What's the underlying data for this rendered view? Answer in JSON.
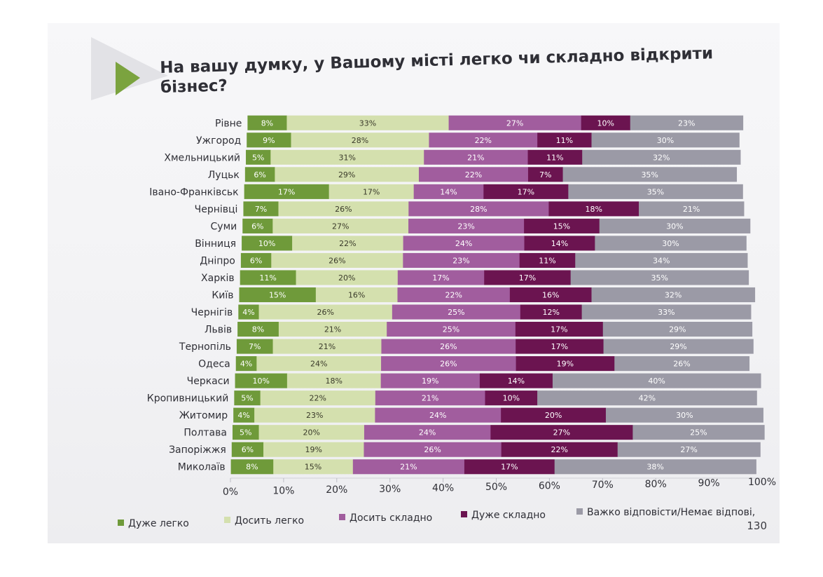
{
  "title": "На вашу думку, у Вашому місті легко чи складно відкрити бізнес?",
  "page_number": "130",
  "colors": {
    "very_easy": "#6f9a3a",
    "rather_easy": "#d4e0ae",
    "rather_difficult": "#a15d9e",
    "very_difficult": "#6b1450",
    "hard_to_say": "#9b9aa6",
    "arrow": "#7ba33f",
    "text": "#2f2f36"
  },
  "chart_data": {
    "type": "bar",
    "orientation": "horizontal",
    "stacked": true,
    "title": "На вашу думку, у Вашому місті легко чи складно відкрити бізнес?",
    "categories": [
      "Рівне",
      "Ужгород",
      "Хмельницький",
      "Луцьк",
      "Івано-Франківськ",
      "Чернівці",
      "Суми",
      "Вінниця",
      "Дніпро",
      "Харків",
      "Київ",
      "Чернігів",
      "Львів",
      "Тернопіль",
      "Одеса",
      "Черкаси",
      "Кропивницький",
      "Житомир",
      "Полтава",
      "Запоріжжя",
      "Миколаїв"
    ],
    "series": [
      {
        "name": "Дуже легко",
        "color": "#6f9a3a",
        "values": [
          8,
          9,
          5,
          6,
          17,
          7,
          6,
          10,
          6,
          11,
          15,
          4,
          8,
          7,
          4,
          10,
          5,
          4,
          5,
          6,
          8
        ]
      },
      {
        "name": "Досить легко",
        "color": "#d4e0ae",
        "values": [
          33,
          28,
          31,
          29,
          17,
          26,
          27,
          22,
          26,
          20,
          16,
          26,
          21,
          21,
          24,
          18,
          22,
          23,
          20,
          19,
          15
        ]
      },
      {
        "name": "Досить складно",
        "color": "#a15d9e",
        "values": [
          27,
          22,
          21,
          22,
          14,
          28,
          23,
          24,
          23,
          17,
          22,
          25,
          25,
          26,
          26,
          19,
          21,
          24,
          24,
          26,
          21
        ]
      },
      {
        "name": "Дуже складно",
        "color": "#6b1450",
        "values": [
          10,
          11,
          11,
          7,
          17,
          18,
          15,
          14,
          11,
          17,
          16,
          12,
          17,
          17,
          19,
          14,
          10,
          20,
          27,
          22,
          17
        ]
      },
      {
        "name": "Важко відповісти/Немає відпові,",
        "color": "#9b9aa6",
        "values": [
          23,
          30,
          32,
          35,
          35,
          21,
          30,
          30,
          34,
          35,
          32,
          33,
          29,
          29,
          26,
          40,
          42,
          30,
          25,
          27,
          38
        ]
      }
    ],
    "x_ticks": [
      "0%",
      "10%",
      "20%",
      "30%",
      "40%",
      "50%",
      "60%",
      "70%",
      "80%",
      "90%",
      "100%"
    ],
    "xlim": [
      0,
      100
    ],
    "value_suffix": "%",
    "legend_position": "bottom",
    "grid": false
  }
}
